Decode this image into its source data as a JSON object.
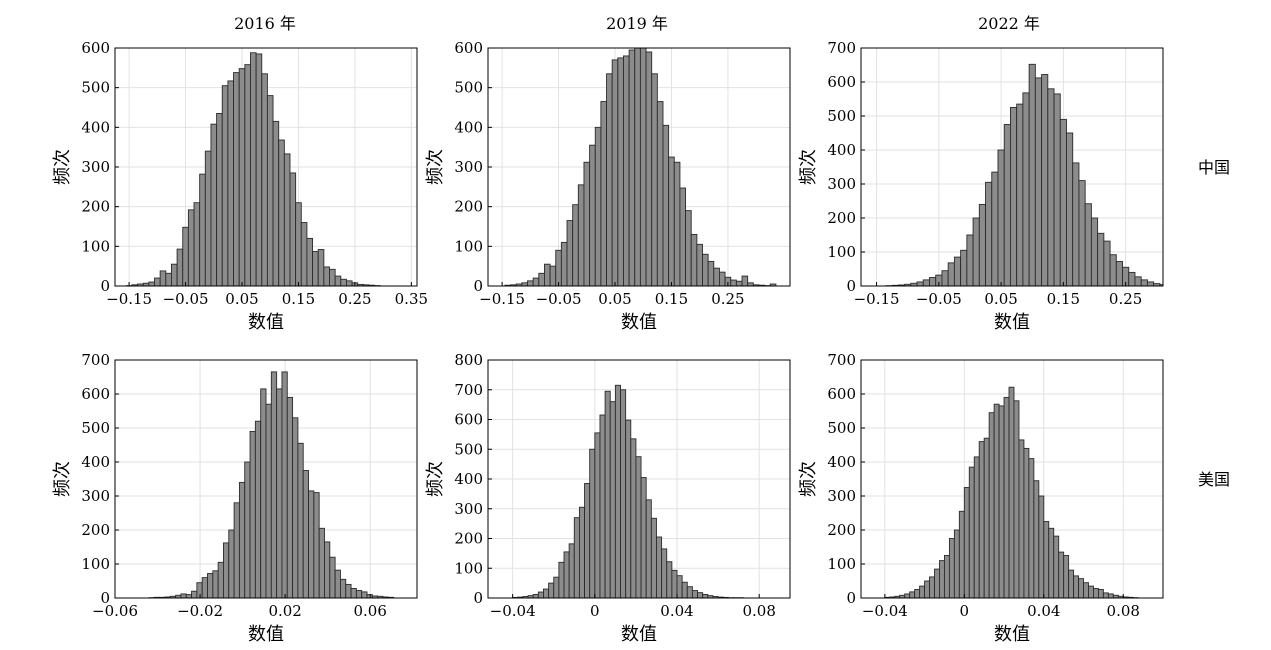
{
  "column_titles": [
    "2016 年",
    "2019 年",
    "2022 年"
  ],
  "row_labels": [
    "中国",
    "美国"
  ],
  "colors": {
    "bar_fill": "#8c8c8c",
    "bar_edge": "#2b2b2b",
    "grid": "#e2e2e2",
    "axis": "#000000"
  },
  "chart_data": [
    {
      "type": "bar",
      "subtype": "histogram",
      "row_label": "中国",
      "column_title": "2016 年",
      "xlabel": "数值",
      "ylabel": "频次",
      "grid": true,
      "xlim": [
        -0.175,
        0.36
      ],
      "ylim": [
        0,
        600
      ],
      "xticks": [
        -0.15,
        -0.05,
        0.05,
        0.15,
        0.25,
        0.35
      ],
      "xtick_labels": [
        "−0.15",
        "−0.05",
        "0.05",
        "0.15",
        "0.25",
        "0.35"
      ],
      "yticks": [
        0,
        100,
        200,
        300,
        400,
        500,
        600
      ],
      "bins": {
        "start": -0.155,
        "width": 0.01
      },
      "values": [
        1,
        3,
        5,
        7,
        10,
        20,
        38,
        32,
        55,
        93,
        148,
        192,
        210,
        282,
        340,
        408,
        435,
        505,
        517,
        538,
        548,
        558,
        588,
        585,
        535,
        480,
        415,
        368,
        333,
        285,
        210,
        160,
        120,
        87,
        92,
        48,
        42,
        25,
        17,
        13,
        8,
        4,
        3,
        2,
        1
      ]
    },
    {
      "type": "bar",
      "subtype": "histogram",
      "row_label": "中国",
      "column_title": "2019 年",
      "xlabel": "数值",
      "ylabel": "频次",
      "grid": true,
      "xlim": [
        -0.175,
        0.36
      ],
      "ylim": [
        0,
        600
      ],
      "xticks": [
        -0.15,
        -0.05,
        0.05,
        0.15,
        0.25
      ],
      "xtick_labels": [
        "−0.15",
        "−0.05",
        "0.05",
        "0.15",
        "0.25"
      ],
      "yticks": [
        0,
        100,
        200,
        300,
        400,
        500,
        600
      ],
      "bins": {
        "start": -0.145,
        "width": 0.01
      },
      "values": [
        2,
        3,
        5,
        8,
        13,
        20,
        32,
        55,
        50,
        90,
        110,
        165,
        205,
        255,
        312,
        355,
        400,
        465,
        535,
        570,
        575,
        580,
        595,
        600,
        600,
        590,
        535,
        465,
        405,
        325,
        312,
        247,
        190,
        130,
        105,
        80,
        62,
        45,
        35,
        22,
        15,
        12,
        25,
        8,
        3,
        2,
        1,
        5
      ]
    },
    {
      "type": "bar",
      "subtype": "histogram",
      "row_label": "中国",
      "column_title": "2022 年",
      "xlabel": "数值",
      "ylabel": "频次",
      "grid": true,
      "xlim": [
        -0.175,
        0.31
      ],
      "ylim": [
        0,
        700
      ],
      "xticks": [
        -0.15,
        -0.05,
        0.05,
        0.15,
        0.25
      ],
      "xtick_labels": [
        "−0.15",
        "−0.05",
        "0.05",
        "0.15",
        "0.25"
      ],
      "yticks": [
        0,
        100,
        200,
        300,
        400,
        500,
        600,
        700
      ],
      "bins": {
        "start": -0.135,
        "width": 0.01
      },
      "values": [
        1,
        2,
        3,
        5,
        8,
        12,
        18,
        25,
        32,
        45,
        68,
        85,
        105,
        150,
        200,
        240,
        305,
        335,
        400,
        475,
        525,
        535,
        568,
        652,
        612,
        622,
        580,
        565,
        490,
        450,
        362,
        310,
        242,
        200,
        155,
        132,
        92,
        72,
        55,
        40,
        27,
        18,
        12,
        7,
        4,
        3,
        2
      ]
    },
    {
      "type": "bar",
      "subtype": "histogram",
      "row_label": "美国",
      "column_title": "2016 年",
      "xlabel": "数值",
      "ylabel": "频次",
      "grid": true,
      "xlim": [
        -0.06,
        0.082
      ],
      "ylim": [
        0,
        700
      ],
      "xticks": [
        -0.06,
        -0.02,
        0.02,
        0.06
      ],
      "xtick_labels": [
        "−0.06",
        "−0.02",
        "0.02",
        "0.06"
      ],
      "yticks": [
        0,
        100,
        200,
        300,
        400,
        500,
        600,
        700
      ],
      "bins": {
        "start": -0.044,
        "width": 0.0025
      },
      "values": [
        1,
        2,
        2,
        3,
        5,
        8,
        12,
        10,
        20,
        45,
        60,
        72,
        80,
        105,
        162,
        200,
        280,
        340,
        400,
        490,
        520,
        615,
        570,
        665,
        615,
        665,
        590,
        530,
        455,
        375,
        315,
        310,
        205,
        165,
        120,
        82,
        55,
        40,
        28,
        22,
        18,
        10,
        6,
        5,
        3,
        2
      ]
    },
    {
      "type": "bar",
      "subtype": "histogram",
      "row_label": "美国",
      "column_title": "2019 年",
      "xlabel": "数值",
      "ylabel": "频次",
      "grid": true,
      "xlim": [
        -0.052,
        0.095
      ],
      "ylim": [
        0,
        800
      ],
      "xticks": [
        -0.04,
        0,
        0.04,
        0.08
      ],
      "xtick_labels": [
        "−0.04",
        "0",
        "0.04",
        "0.08"
      ],
      "yticks": [
        0,
        100,
        200,
        300,
        400,
        500,
        600,
        700,
        800
      ],
      "bins": {
        "start": -0.04,
        "width": 0.0025
      },
      "values": [
        2,
        3,
        5,
        8,
        12,
        20,
        30,
        50,
        70,
        120,
        155,
        182,
        270,
        305,
        385,
        500,
        555,
        615,
        695,
        660,
        715,
        700,
        598,
        535,
        475,
        405,
        330,
        268,
        205,
        165,
        122,
        93,
        75,
        53,
        38,
        25,
        18,
        12,
        8,
        5,
        3,
        2,
        1,
        1,
        1
      ]
    },
    {
      "type": "bar",
      "subtype": "histogram",
      "row_label": "美国",
      "column_title": "2022 年",
      "xlabel": "数值",
      "ylabel": "频次",
      "grid": true,
      "xlim": [
        -0.052,
        0.1
      ],
      "ylim": [
        0,
        700
      ],
      "xticks": [
        -0.04,
        0,
        0.04,
        0.08
      ],
      "xtick_labels": [
        "−0.04",
        "0",
        "0.04",
        "0.08"
      ],
      "yticks": [
        0,
        100,
        200,
        300,
        400,
        500,
        600,
        700
      ],
      "bins": {
        "start": -0.04,
        "width": 0.0025
      },
      "values": [
        2,
        3,
        5,
        8,
        12,
        18,
        25,
        35,
        50,
        62,
        85,
        110,
        125,
        175,
        200,
        255,
        325,
        385,
        415,
        460,
        470,
        545,
        570,
        565,
        590,
        620,
        580,
        465,
        440,
        410,
        345,
        300,
        225,
        205,
        182,
        135,
        125,
        82,
        65,
        57,
        45,
        35,
        28,
        25,
        15,
        12,
        8,
        5,
        3,
        2,
        1
      ]
    }
  ]
}
